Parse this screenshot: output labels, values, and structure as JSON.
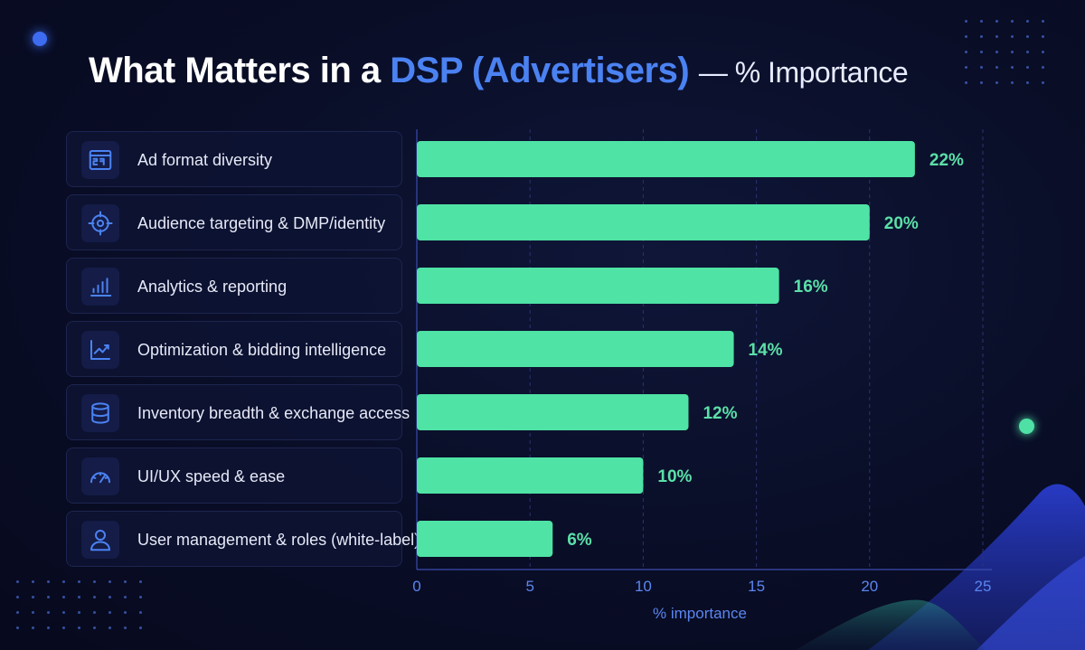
{
  "title": {
    "prefix": "What Matters in a",
    "highlight": "DSP (Advertisers)",
    "suffix": "— % Importance"
  },
  "colors": {
    "bar": "#4fe3a5",
    "value_label": "#5be0a8",
    "accent": "#4b82f2",
    "background": "#090d26"
  },
  "rows": [
    {
      "label": "Ad format diversity",
      "icon": "ad-format-icon"
    },
    {
      "label": "Audience targeting & DMP/identity",
      "icon": "target-icon"
    },
    {
      "label": "Analytics & reporting",
      "icon": "bar-chart-icon"
    },
    {
      "label": "Optimization & bidding intelligence",
      "icon": "trend-line-icon"
    },
    {
      "label": "Inventory breadth & exchange access",
      "icon": "database-icon"
    },
    {
      "label": "UI/UX speed & ease",
      "icon": "speedometer-icon"
    },
    {
      "label": "User management & roles (white-label)",
      "icon": "user-icon"
    }
  ],
  "chart_data": {
    "type": "bar",
    "orientation": "horizontal",
    "categories": [
      "Ad format diversity",
      "Audience targeting & DMP/identity",
      "Analytics & reporting",
      "Optimization & bidding intelligence",
      "Inventory breadth & exchange access",
      "UI/UX speed & ease",
      "User management & roles (white-label)"
    ],
    "values": [
      22,
      20,
      16,
      14,
      12,
      10,
      6
    ],
    "value_labels": [
      "22%",
      "20%",
      "16%",
      "14%",
      "12%",
      "10%",
      "6%"
    ],
    "xlabel": "% importance",
    "xlim": [
      0,
      25
    ],
    "xticks": [
      0,
      5,
      10,
      15,
      20,
      25
    ],
    "grid": "vertical dashed",
    "legend": "none"
  }
}
